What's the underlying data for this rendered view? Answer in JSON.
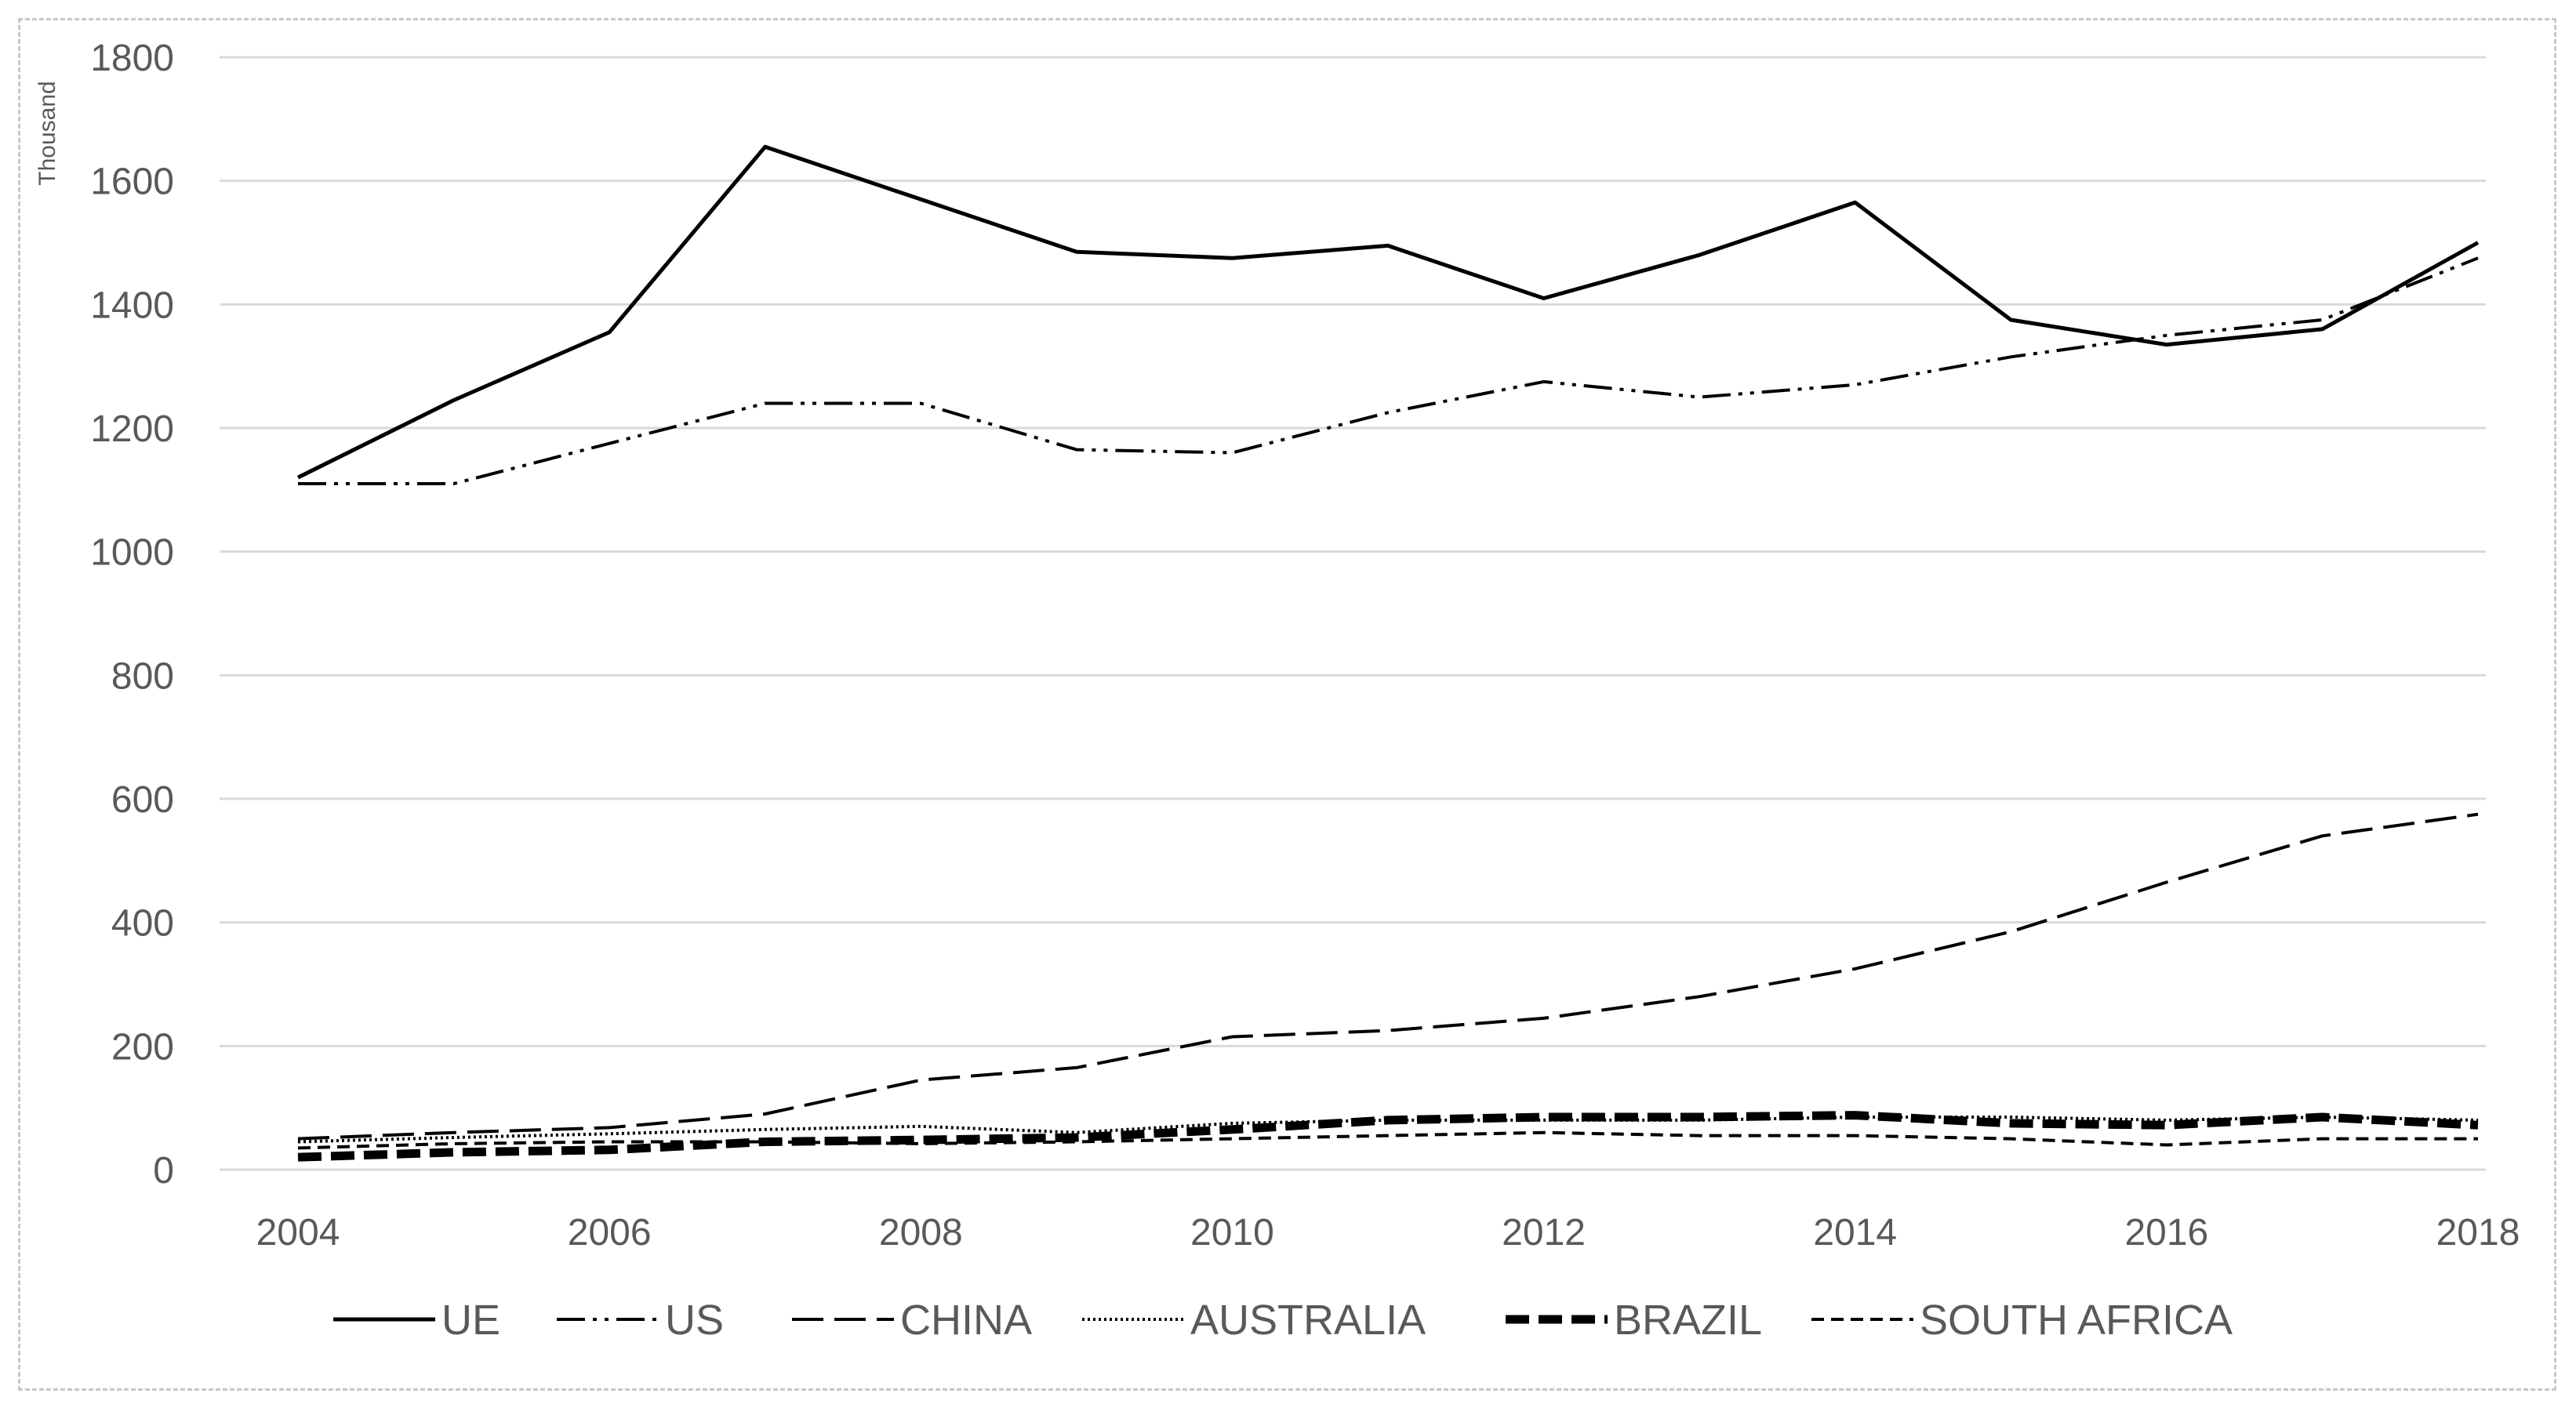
{
  "chart_data": {
    "type": "line",
    "title": "",
    "xlabel": "",
    "ylabel": "Thousand",
    "x": [
      2004,
      2005,
      2006,
      2007,
      2008,
      2009,
      2010,
      2011,
      2012,
      2013,
      2014,
      2015,
      2016,
      2017,
      2018
    ],
    "x_ticks": [
      "2004",
      "2006",
      "2008",
      "2010",
      "2012",
      "2014",
      "2016",
      "2018"
    ],
    "y_ticks": [
      "0",
      "200",
      "400",
      "600",
      "800",
      "1000",
      "1200",
      "1400",
      "1600",
      "1800"
    ],
    "ylim": [
      0,
      1800
    ],
    "grid": true,
    "legend_position": "bottom",
    "series": [
      {
        "name": "UE",
        "style": "solid",
        "values": [
          1120,
          1245,
          1355,
          1655,
          1570,
          1485,
          1475,
          1495,
          1410,
          1480,
          1565,
          1375,
          1335,
          1360,
          1500
        ]
      },
      {
        "name": "US",
        "style": "dash-dot-dot",
        "values": [
          1110,
          1110,
          1175,
          1240,
          1240,
          1165,
          1160,
          1225,
          1275,
          1250,
          1270,
          1315,
          1350,
          1375,
          1475
        ]
      },
      {
        "name": "CHINA",
        "style": "long-dash",
        "values": [
          50,
          60,
          68,
          90,
          145,
          165,
          215,
          225,
          245,
          280,
          325,
          385,
          465,
          540,
          575
        ]
      },
      {
        "name": "AUSTRALIA",
        "style": "dotted",
        "values": [
          45,
          52,
          58,
          65,
          70,
          60,
          75,
          80,
          80,
          80,
          85,
          85,
          80,
          85,
          80
        ]
      },
      {
        "name": "BRAZIL",
        "style": "thick-dash",
        "values": [
          20,
          28,
          32,
          45,
          48,
          52,
          65,
          80,
          85,
          85,
          88,
          75,
          72,
          85,
          72
        ]
      },
      {
        "name": "SOUTH AFRICA",
        "style": "short-dash",
        "values": [
          35,
          42,
          45,
          45,
          42,
          45,
          50,
          55,
          60,
          55,
          55,
          50,
          40,
          50,
          50
        ]
      }
    ]
  }
}
